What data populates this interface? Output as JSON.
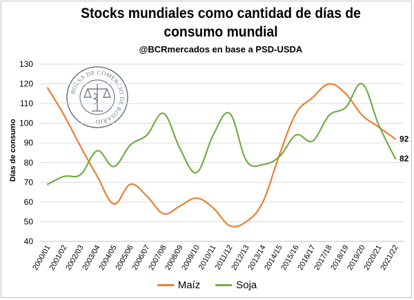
{
  "header": {
    "title_line1": "Stocks mundiales como cantidad de días de",
    "title_line2": "consumo mundial",
    "subtitle": "@BCRmercados en base a PSD-USDA"
  },
  "logo": {
    "text": "BOLSA DE COMERCIO DE ROSARIO"
  },
  "chart_data": {
    "type": "line",
    "title": "Stocks mundiales como cantidad de días de consumo mundial",
    "subtitle": "@BCRmercados en base a PSD-USDA",
    "xlabel": "",
    "ylabel": "Días de consumo",
    "ylim": [
      40,
      130
    ],
    "yticks": [
      40,
      50,
      60,
      70,
      80,
      90,
      100,
      110,
      120,
      130
    ],
    "grid": true,
    "legend_position": "bottom",
    "categories": [
      "2000/01",
      "2001/02",
      "2002/03",
      "2003/04",
      "2004/05",
      "2005/06",
      "2006/07",
      "2007/08",
      "2008/09",
      "2009/10",
      "2010/11",
      "2011/12",
      "2012/13",
      "2013/14",
      "2014/15",
      "2015/16",
      "2016/17",
      "2017/18",
      "2018/19",
      "2019/20",
      "2020/21",
      "2021/22"
    ],
    "series": [
      {
        "name": "Maíz",
        "color": "#ed7d31",
        "values": [
          118,
          104,
          88,
          73,
          59,
          69,
          63,
          54,
          58,
          62,
          57,
          48,
          50,
          60,
          84,
          105,
          113,
          120,
          115,
          104,
          98,
          92
        ],
        "end_label": "92"
      },
      {
        "name": "Soja",
        "color": "#70ad47",
        "values": [
          69,
          73,
          74,
          86,
          78,
          89,
          94,
          105,
          87,
          75,
          94,
          105,
          81,
          79,
          83,
          94,
          91,
          104,
          108,
          120,
          99,
          82
        ],
        "end_label": "82"
      }
    ]
  }
}
